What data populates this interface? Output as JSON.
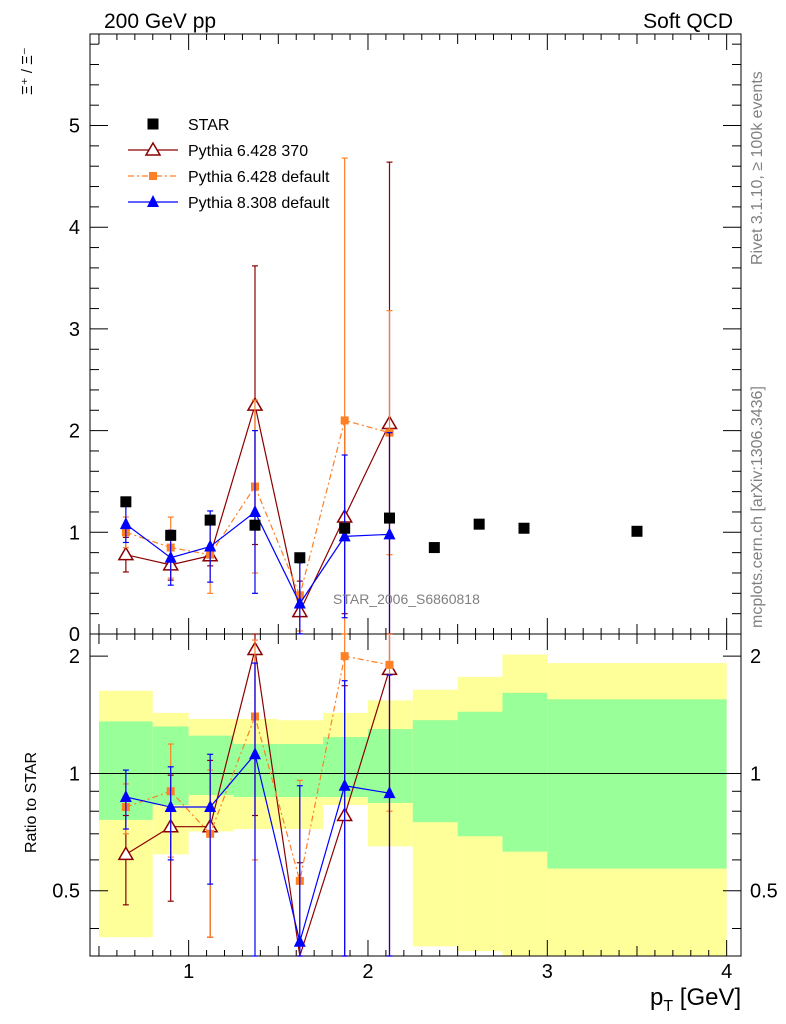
{
  "header": {
    "left": "200 GeV pp",
    "right": "Soft QCD"
  },
  "side_labels": {
    "rivet": "Rivet 3.1.10, ≥ 100k events",
    "mcplots": "mcplots.cern.ch [arXiv:1306.3436]"
  },
  "watermark": "STAR_2006_S6860818",
  "colors": {
    "star": "#000000",
    "p6_370": "#8b0000",
    "p6_def": "#ff7f24",
    "p8": "#0000ff",
    "band_inner": "#99ff99",
    "band_outer": "#ffff99"
  },
  "chart_data": [
    {
      "type": "line",
      "title": "",
      "ylabel": "Ξ⁺ / Ξ⁻",
      "xlim": [
        0.45,
        4.08
      ],
      "ylim": [
        0,
        5.9
      ],
      "yticks": [
        "0",
        "1",
        "2",
        "3",
        "4",
        "5"
      ],
      "legend": "upper-left",
      "series": [
        {
          "name": "STAR",
          "marker": "square",
          "x": [
            0.65,
            0.9,
            1.12,
            1.37,
            1.62,
            1.87,
            2.12,
            2.37,
            2.62,
            2.87,
            3.5
          ],
          "y": [
            1.3,
            0.97,
            1.12,
            1.07,
            0.75,
            1.04,
            1.14,
            0.85,
            1.08,
            1.04,
            1.01
          ]
        },
        {
          "name": "Pythia 6.428 370",
          "marker": "open-triangle",
          "x": [
            0.65,
            0.9,
            1.12,
            1.37,
            1.62,
            1.87,
            2.12
          ],
          "y": [
            0.78,
            0.68,
            0.77,
            2.25,
            0.22,
            1.15,
            2.07
          ],
          "yerr": [
            0.17,
            0.15,
            0.1,
            1.37,
            0.3,
            0.95,
            2.57
          ]
        },
        {
          "name": "Pythia 6.428 default",
          "marker": "filled-square-small",
          "x": [
            0.65,
            0.9,
            1.12,
            1.37,
            1.62,
            1.87,
            2.12
          ],
          "y": [
            1.0,
            0.85,
            0.78,
            1.45,
            0.38,
            2.1,
            1.98
          ],
          "yerr": [
            0.15,
            0.3,
            0.38,
            0.85,
            0.35,
            2.58,
            1.2
          ]
        },
        {
          "name": "Pythia 8.308 default",
          "marker": "filled-triangle",
          "x": [
            0.65,
            0.9,
            1.12,
            1.37,
            1.62,
            1.87,
            2.12
          ],
          "y": [
            1.08,
            0.75,
            0.86,
            1.2,
            0.3,
            0.96,
            0.98
          ],
          "yerr": [
            0.18,
            0.27,
            0.35,
            0.8,
            0.4,
            0.8,
            1.0
          ]
        }
      ]
    },
    {
      "type": "line",
      "ylabel": "Ratio to STAR",
      "xlabel": "p_T [GeV]",
      "xlim": [
        0.45,
        4.08
      ],
      "ylim": [
        0.34,
        2.28
      ],
      "log_y": true,
      "xticks": [
        "1",
        "2",
        "3",
        "4"
      ],
      "yticks": [
        "0.5",
        "1",
        "2"
      ],
      "bands": {
        "edges": [
          0.5,
          0.8,
          1.0,
          1.25,
          1.5,
          1.75,
          2.0,
          2.25,
          2.5,
          2.75,
          3.0,
          4.0
        ],
        "inner_low": [
          0.76,
          0.83,
          0.88,
          0.87,
          0.87,
          0.87,
          0.84,
          0.75,
          0.69,
          0.63,
          0.57
        ],
        "inner_high": [
          1.36,
          1.32,
          1.25,
          1.19,
          1.19,
          1.24,
          1.3,
          1.37,
          1.44,
          1.61,
          1.55
        ],
        "outer_low": [
          0.38,
          0.62,
          0.71,
          0.72,
          0.72,
          0.83,
          0.65,
          0.36,
          0.35,
          0.32,
          0.32
        ],
        "outer_high": [
          1.63,
          1.43,
          1.38,
          1.38,
          1.37,
          1.43,
          1.54,
          1.64,
          1.77,
          2.02,
          1.92
        ]
      },
      "series": [
        {
          "name": "Pythia 6.428 370",
          "x": [
            0.65,
            0.9,
            1.12,
            1.37,
            1.62,
            1.87,
            2.12
          ],
          "y": [
            0.62,
            0.73,
            0.73,
            2.08,
            0.29,
            0.78,
            1.85
          ],
          "yerr": [
            0.16,
            0.26,
            0.35,
            1.3,
            0.3,
            0.9,
            1.8
          ]
        },
        {
          "name": "Pythia 6.428 default",
          "x": [
            0.65,
            0.9,
            1.12,
            1.37,
            1.62,
            1.87,
            2.12
          ],
          "y": [
            0.82,
            0.9,
            0.7,
            1.4,
            0.53,
            2.0,
            1.9
          ],
          "yerr": [
            0.12,
            0.29,
            0.32,
            0.8,
            0.43,
            2.2,
            1.1
          ]
        },
        {
          "name": "Pythia 8.308 default",
          "x": [
            0.65,
            0.9,
            1.12,
            1.37,
            1.62,
            1.87,
            2.12
          ],
          "y": [
            0.87,
            0.82,
            0.82,
            1.12,
            0.37,
            0.93,
            0.89
          ],
          "yerr": [
            0.15,
            0.22,
            0.3,
            0.8,
            0.56,
            0.8,
            0.9
          ]
        }
      ]
    }
  ]
}
